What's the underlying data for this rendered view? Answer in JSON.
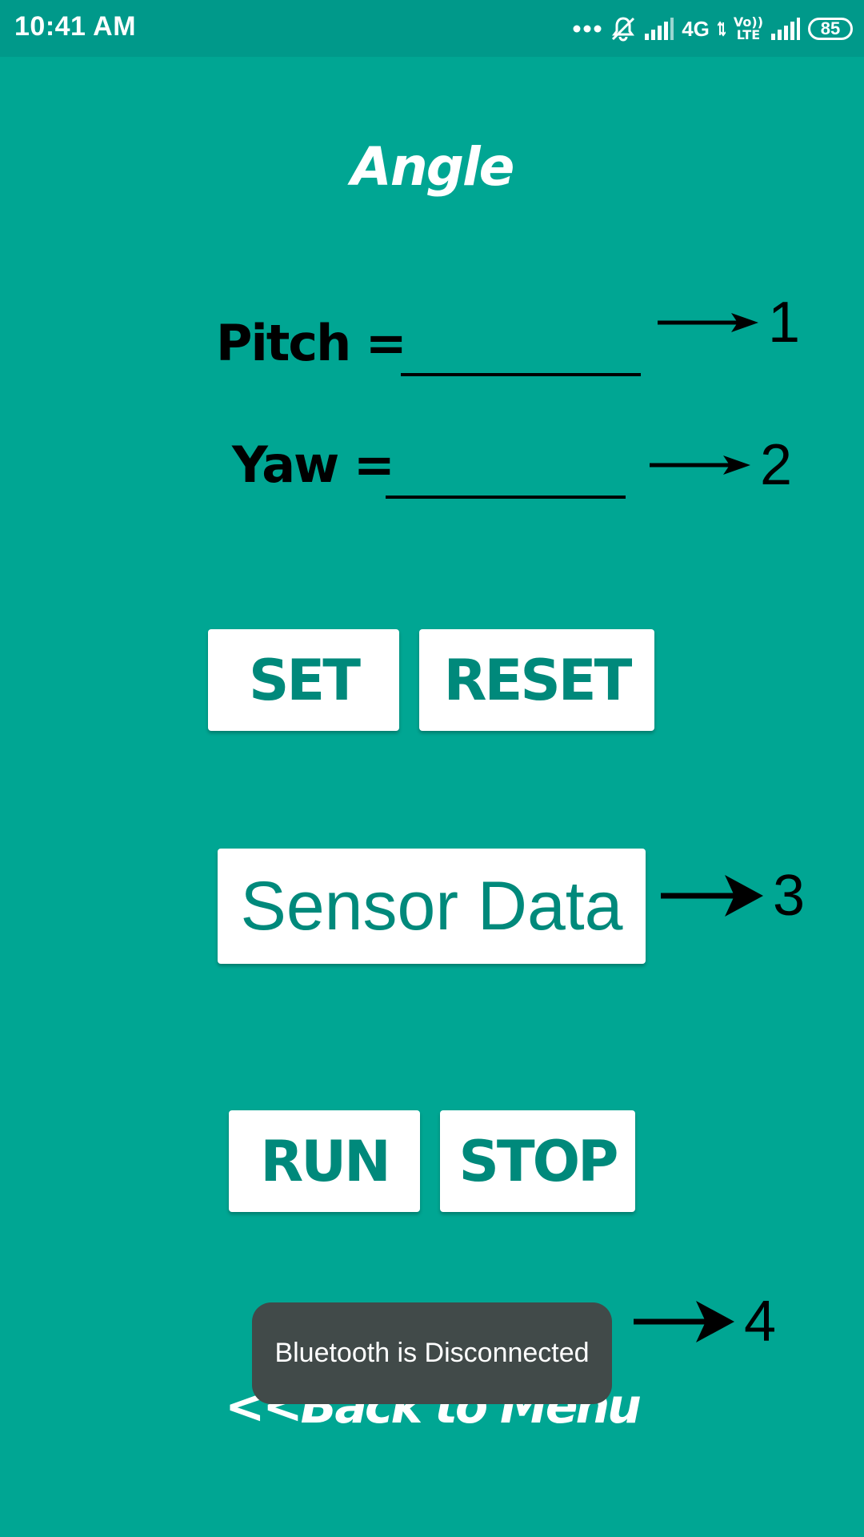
{
  "status_bar": {
    "time": "10:41 AM",
    "network": "4G",
    "volte_top": "Vo))",
    "volte_bottom": "LTE",
    "battery": "85"
  },
  "screen": {
    "title": "Angle",
    "pitch_label": "Pitch =",
    "yaw_label": "Yaw =",
    "set_label": "SET",
    "reset_label": "RESET",
    "sensor_label": "Sensor Data",
    "run_label": "RUN",
    "stop_label": "STOP",
    "back_label": "<<Back to Menu"
  },
  "annotations": [
    "1",
    "2",
    "3",
    "4"
  ],
  "toast": {
    "message": "Bluetooth is Disconnected"
  },
  "colors": {
    "background": "#00A693",
    "status_bar": "#00998A",
    "button_text": "#00897B",
    "toast": "#414A49"
  }
}
